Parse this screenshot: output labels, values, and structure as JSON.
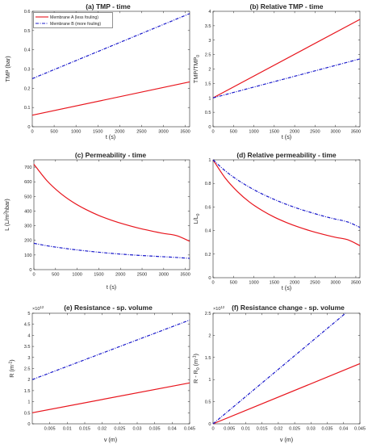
{
  "colors": {
    "membrane_a": "#e8141c",
    "membrane_b": "#1a1acb",
    "axis": "#262626"
  },
  "legend": {
    "entries": [
      "Membrane A (less fouling)",
      "Membrane B (more fouling)"
    ],
    "placement": "top-left of panel (a)"
  },
  "chart_data": [
    {
      "id": "a",
      "type": "line",
      "title": "(a) TMP - time",
      "xlabel": "t (s)",
      "ylabel": "TMP (bar)",
      "xlim": [
        0,
        3600
      ],
      "ylim": [
        0,
        0.6
      ],
      "xticks": [
        0,
        500,
        1000,
        1500,
        2000,
        2500,
        3000,
        3500
      ],
      "xtick_labels": [
        "0",
        "500",
        "1000",
        "1500",
        "2000",
        "2500",
        "3000",
        "3500"
      ],
      "yticks": [
        0,
        0.1,
        0.2,
        0.3,
        0.4,
        0.5,
        0.6
      ],
      "ytick_labels": [
        "0",
        "0.1",
        "0.2",
        "0.3",
        "0.4",
        "0.5",
        "0.6"
      ],
      "series": [
        {
          "name": "Membrane A (less fouling)",
          "style": "solid",
          "x": [
            0,
            3600
          ],
          "y": [
            0.06,
            0.233
          ]
        },
        {
          "name": "Membrane B (more fouling)",
          "style": "dashdot",
          "x": [
            0,
            3600
          ],
          "y": [
            0.25,
            0.588
          ]
        }
      ]
    },
    {
      "id": "b",
      "type": "line",
      "title": "(b) Relative TMP - time",
      "xlabel": "t (s)",
      "ylabel": "TMP/TMP",
      "ylabel_sub": "0",
      "xlim": [
        0,
        3600
      ],
      "ylim": [
        0,
        4
      ],
      "xticks": [
        0,
        500,
        1000,
        1500,
        2000,
        2500,
        3000,
        3500
      ],
      "xtick_labels": [
        "0",
        "500",
        "1000",
        "1500",
        "2000",
        "2500",
        "3000",
        "3500"
      ],
      "yticks": [
        0,
        0.5,
        1,
        1.5,
        2,
        2.5,
        3,
        3.5,
        4
      ],
      "ytick_labels": [
        "0",
        "0.5",
        "1",
        "1.5",
        "2",
        "2.5",
        "3",
        "3.5",
        "4"
      ],
      "series": [
        {
          "name": "Membrane A (less fouling)",
          "style": "solid",
          "x": [
            0,
            3600
          ],
          "y": [
            1,
            3.72
          ]
        },
        {
          "name": "Membrane B (more fouling)",
          "style": "dashdot",
          "x": [
            0,
            3600
          ],
          "y": [
            1,
            2.35
          ]
        }
      ]
    },
    {
      "id": "c",
      "type": "line",
      "title": "(c) Permeability - time",
      "xlabel": "t (s)",
      "ylabel": "L (L/m",
      "ylabel_sup": "2",
      "ylabel_tail": "hbar)",
      "xlim": [
        0,
        3600
      ],
      "ylim": [
        0,
        750
      ],
      "xticks": [
        0,
        500,
        1000,
        1500,
        2000,
        2500,
        3000,
        3500
      ],
      "xtick_labels": [
        "0",
        "500",
        "1000",
        "1500",
        "2000",
        "2500",
        "3000",
        "3500"
      ],
      "yticks": [
        0,
        100,
        200,
        300,
        400,
        500,
        600,
        700
      ],
      "ytick_labels": [
        "0",
        "100",
        "200",
        "300",
        "400",
        "500",
        "600",
        "700"
      ],
      "series": [
        {
          "name": "Membrane A (less fouling)",
          "style": "solid",
          "x": [
            0,
            300,
            600,
            900,
            1200,
            1500,
            1800,
            2100,
            2400,
            2700,
            3000,
            3300,
            3600
          ],
          "y": [
            720,
            608,
            525,
            461,
            411,
            370,
            337,
            309,
            285,
            265,
            247,
            232,
            194
          ]
        },
        {
          "name": "Membrane B (more fouling)",
          "style": "dashdot",
          "x": [
            0,
            300,
            600,
            900,
            1200,
            1500,
            1800,
            2100,
            2400,
            2700,
            3000,
            3300,
            3600
          ],
          "y": [
            180,
            163,
            150,
            138,
            128,
            119,
            111,
            104,
            98,
            93,
            88,
            83,
            77
          ]
        }
      ]
    },
    {
      "id": "d",
      "type": "line",
      "title": "(d) Relative permeability - time",
      "xlabel": "t (s)",
      "ylabel": "L/L",
      "ylabel_sub": "0",
      "xlim": [
        0,
        3600
      ],
      "ylim": [
        0,
        1
      ],
      "xticks": [
        0,
        500,
        1000,
        1500,
        2000,
        2500,
        3000,
        3500
      ],
      "xtick_labels": [
        "0",
        "500",
        "1000",
        "1500",
        "2000",
        "2500",
        "3000",
        "3500"
      ],
      "yticks": [
        0,
        0.2,
        0.4,
        0.6,
        0.8,
        1
      ],
      "ytick_labels": [
        "0",
        "0.2",
        "0.4",
        "0.6",
        "0.8",
        "1"
      ],
      "series": [
        {
          "name": "Membrane A (less fouling)",
          "style": "solid",
          "x": [
            0,
            300,
            600,
            900,
            1200,
            1500,
            1800,
            2100,
            2400,
            2700,
            3000,
            3300,
            3600
          ],
          "y": [
            1,
            0.845,
            0.73,
            0.64,
            0.571,
            0.514,
            0.468,
            0.429,
            0.396,
            0.368,
            0.343,
            0.322,
            0.272
          ]
        },
        {
          "name": "Membrane B (more fouling)",
          "style": "dashdot",
          "x": [
            0,
            300,
            600,
            900,
            1200,
            1500,
            1800,
            2100,
            2400,
            2700,
            3000,
            3300,
            3600
          ],
          "y": [
            1,
            0.906,
            0.83,
            0.766,
            0.711,
            0.664,
            0.622,
            0.585,
            0.553,
            0.523,
            0.497,
            0.473,
            0.427
          ]
        }
      ]
    },
    {
      "id": "e",
      "type": "line",
      "title": "(e) Resistance - sp. volume",
      "xlabel": "v (m)",
      "ylabel": "R (m",
      "ylabel_sup": "-1",
      "ylabel_tail": ")",
      "y_exponent": "×10",
      "y_exponent_power": "12",
      "xlim": [
        0,
        0.045
      ],
      "ylim": [
        0,
        5
      ],
      "xticks": [
        0.005,
        0.01,
        0.015,
        0.02,
        0.025,
        0.03,
        0.035,
        0.04,
        0.045
      ],
      "xtick_labels": [
        "0.005",
        "0.01",
        "0.015",
        "0.02",
        "0.025",
        "0.03",
        "0.035",
        "0.04",
        "0.045"
      ],
      "yticks": [
        0,
        0.5,
        1,
        1.5,
        2,
        2.5,
        3,
        3.5,
        4,
        4.5,
        5
      ],
      "ytick_labels": [
        "0",
        "0.5",
        "1",
        "1.5",
        "2",
        "2.5",
        "3",
        "3.5",
        "4",
        "4.5",
        "5"
      ],
      "series": [
        {
          "name": "Membrane A (less fouling)",
          "style": "solid",
          "x": [
            0,
            0.045
          ],
          "y": [
            0.5,
            1.85
          ]
        },
        {
          "name": "Membrane B (more fouling)",
          "style": "dashdot",
          "x": [
            0,
            0.045
          ],
          "y": [
            2,
            4.69
          ]
        }
      ]
    },
    {
      "id": "f",
      "type": "line",
      "title": "(f) Resistance change - sp. volume",
      "xlabel": "v (m)",
      "ylabel": "R - R",
      "ylabel_sub": "0",
      "ylabel_tail": " (m",
      "ylabel_sup": "-1",
      "ylabel_tail2": ")",
      "y_exponent": "×10",
      "y_exponent_power": "12",
      "xlim": [
        0,
        0.045
      ],
      "ylim": [
        0,
        2.5
      ],
      "xticks": [
        0,
        0.005,
        0.01,
        0.015,
        0.02,
        0.025,
        0.03,
        0.035,
        0.04,
        0.045
      ],
      "xtick_labels": [
        "0",
        "0.005",
        "0.01",
        "0.015",
        "0.02",
        "0.025",
        "0.03",
        "0.035",
        "0.04",
        "0.045"
      ],
      "yticks": [
        0,
        0.5,
        1,
        1.5,
        2,
        2.5
      ],
      "ytick_labels": [
        "0",
        "0.5",
        "1",
        "1.5",
        "2",
        "2.5"
      ],
      "series": [
        {
          "name": "Membrane A (less fouling)",
          "style": "solid",
          "x": [
            0,
            0.045
          ],
          "y": [
            0,
            1.36
          ]
        },
        {
          "name": "Membrane B (more fouling)",
          "style": "dashdot",
          "x": [
            0,
            0.0406
          ],
          "y": [
            0,
            2.5
          ]
        }
      ]
    }
  ]
}
